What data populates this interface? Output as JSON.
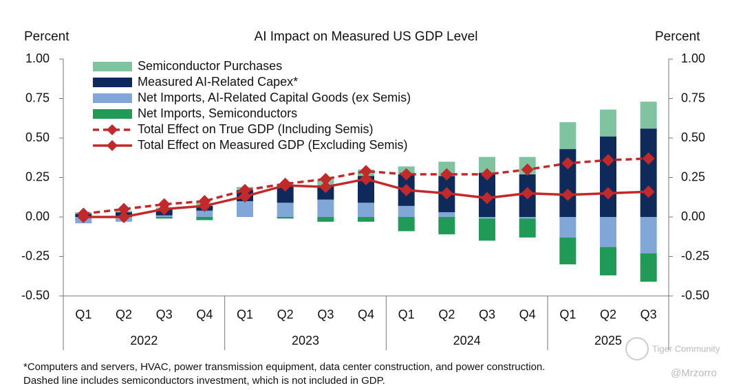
{
  "chart_data": {
    "type": "combo",
    "title": "AI Impact on Measured US GDP Level",
    "y_label": "Percent",
    "y2_label": "Percent",
    "categories": [
      "Q1",
      "Q2",
      "Q3",
      "Q4",
      "Q1",
      "Q2",
      "Q3",
      "Q4",
      "Q1",
      "Q2",
      "Q3",
      "Q4",
      "Q1",
      "Q2",
      "Q3"
    ],
    "years": [
      "2022",
      "2023",
      "2024",
      "2025"
    ],
    "ylim": [
      -0.5,
      1.0
    ],
    "yticks": [
      {
        "value": 1.0,
        "label": "1.00"
      },
      {
        "value": 0.75,
        "label": "0.75"
      },
      {
        "value": 0.5,
        "label": "0.50"
      },
      {
        "value": 0.25,
        "label": "0.25"
      },
      {
        "value": 0,
        "label": "0.00"
      },
      {
        "value": -0.25,
        "label": "-0.25"
      },
      {
        "value": -0.5,
        "label": "-0.50"
      }
    ],
    "series": [
      {
        "name": "Semiconductor Purchases",
        "type": "bar",
        "color": "#80c3a1",
        "values": [
          0.01,
          0.01,
          0.01,
          0.02,
          0.02,
          0.01,
          0.04,
          0.04,
          0.05,
          0.09,
          0.1,
          0.11,
          0.17,
          0.17,
          0.17
        ]
      },
      {
        "name": "Measured AI-Related Capex*",
        "type": "bar",
        "color": "#0e2a5a",
        "values": [
          0.02,
          0.03,
          0.04,
          0.03,
          0.07,
          0.11,
          0.09,
          0.17,
          0.2,
          0.23,
          0.28,
          0.27,
          0.43,
          0.51,
          0.56
        ]
      },
      {
        "name": "Net Imports, AI-Related Capital Goods (ex Semis)",
        "type": "bar",
        "color": "#80a7d8",
        "values": [
          -0.04,
          -0.03,
          0.01,
          0.04,
          0.1,
          0.09,
          0.11,
          0.09,
          0.07,
          0.03,
          -0.01,
          -0.01,
          -0.13,
          -0.19,
          -0.23
        ]
      },
      {
        "name": "Net Imports, Semiconductors",
        "type": "bar",
        "color": "#1f9a57",
        "values": [
          0,
          0,
          -0.01,
          -0.02,
          0,
          -0.01,
          -0.03,
          -0.03,
          -0.09,
          -0.11,
          -0.14,
          -0.12,
          -0.17,
          -0.18,
          -0.18
        ]
      },
      {
        "name": "Total Effect on True GDP (Including Semis)",
        "type": "line",
        "dashed": true,
        "color": "#c3282a",
        "values": [
          0.02,
          0.05,
          0.08,
          0.1,
          0.17,
          0.21,
          0.24,
          0.29,
          0.27,
          0.27,
          0.27,
          0.3,
          0.34,
          0.36,
          0.37
        ]
      },
      {
        "name": "Total Effect on Measured GDP (Excluding Semis)",
        "type": "line",
        "dashed": false,
        "color": "#c3282a",
        "values": [
          0.0,
          0.0,
          0.05,
          0.07,
          0.13,
          0.2,
          0.19,
          0.24,
          0.17,
          0.15,
          0.12,
          0.15,
          0.14,
          0.15,
          0.16
        ]
      }
    ],
    "notes": [
      "*Computers and servers, HVAC, power transmission equipment, data center construction, and power construction.",
      "Dashed line includes semiconductors investment, which is not included in GDP."
    ],
    "watermarks": [
      "Tiger Community",
      "@Mrzorro"
    ]
  }
}
